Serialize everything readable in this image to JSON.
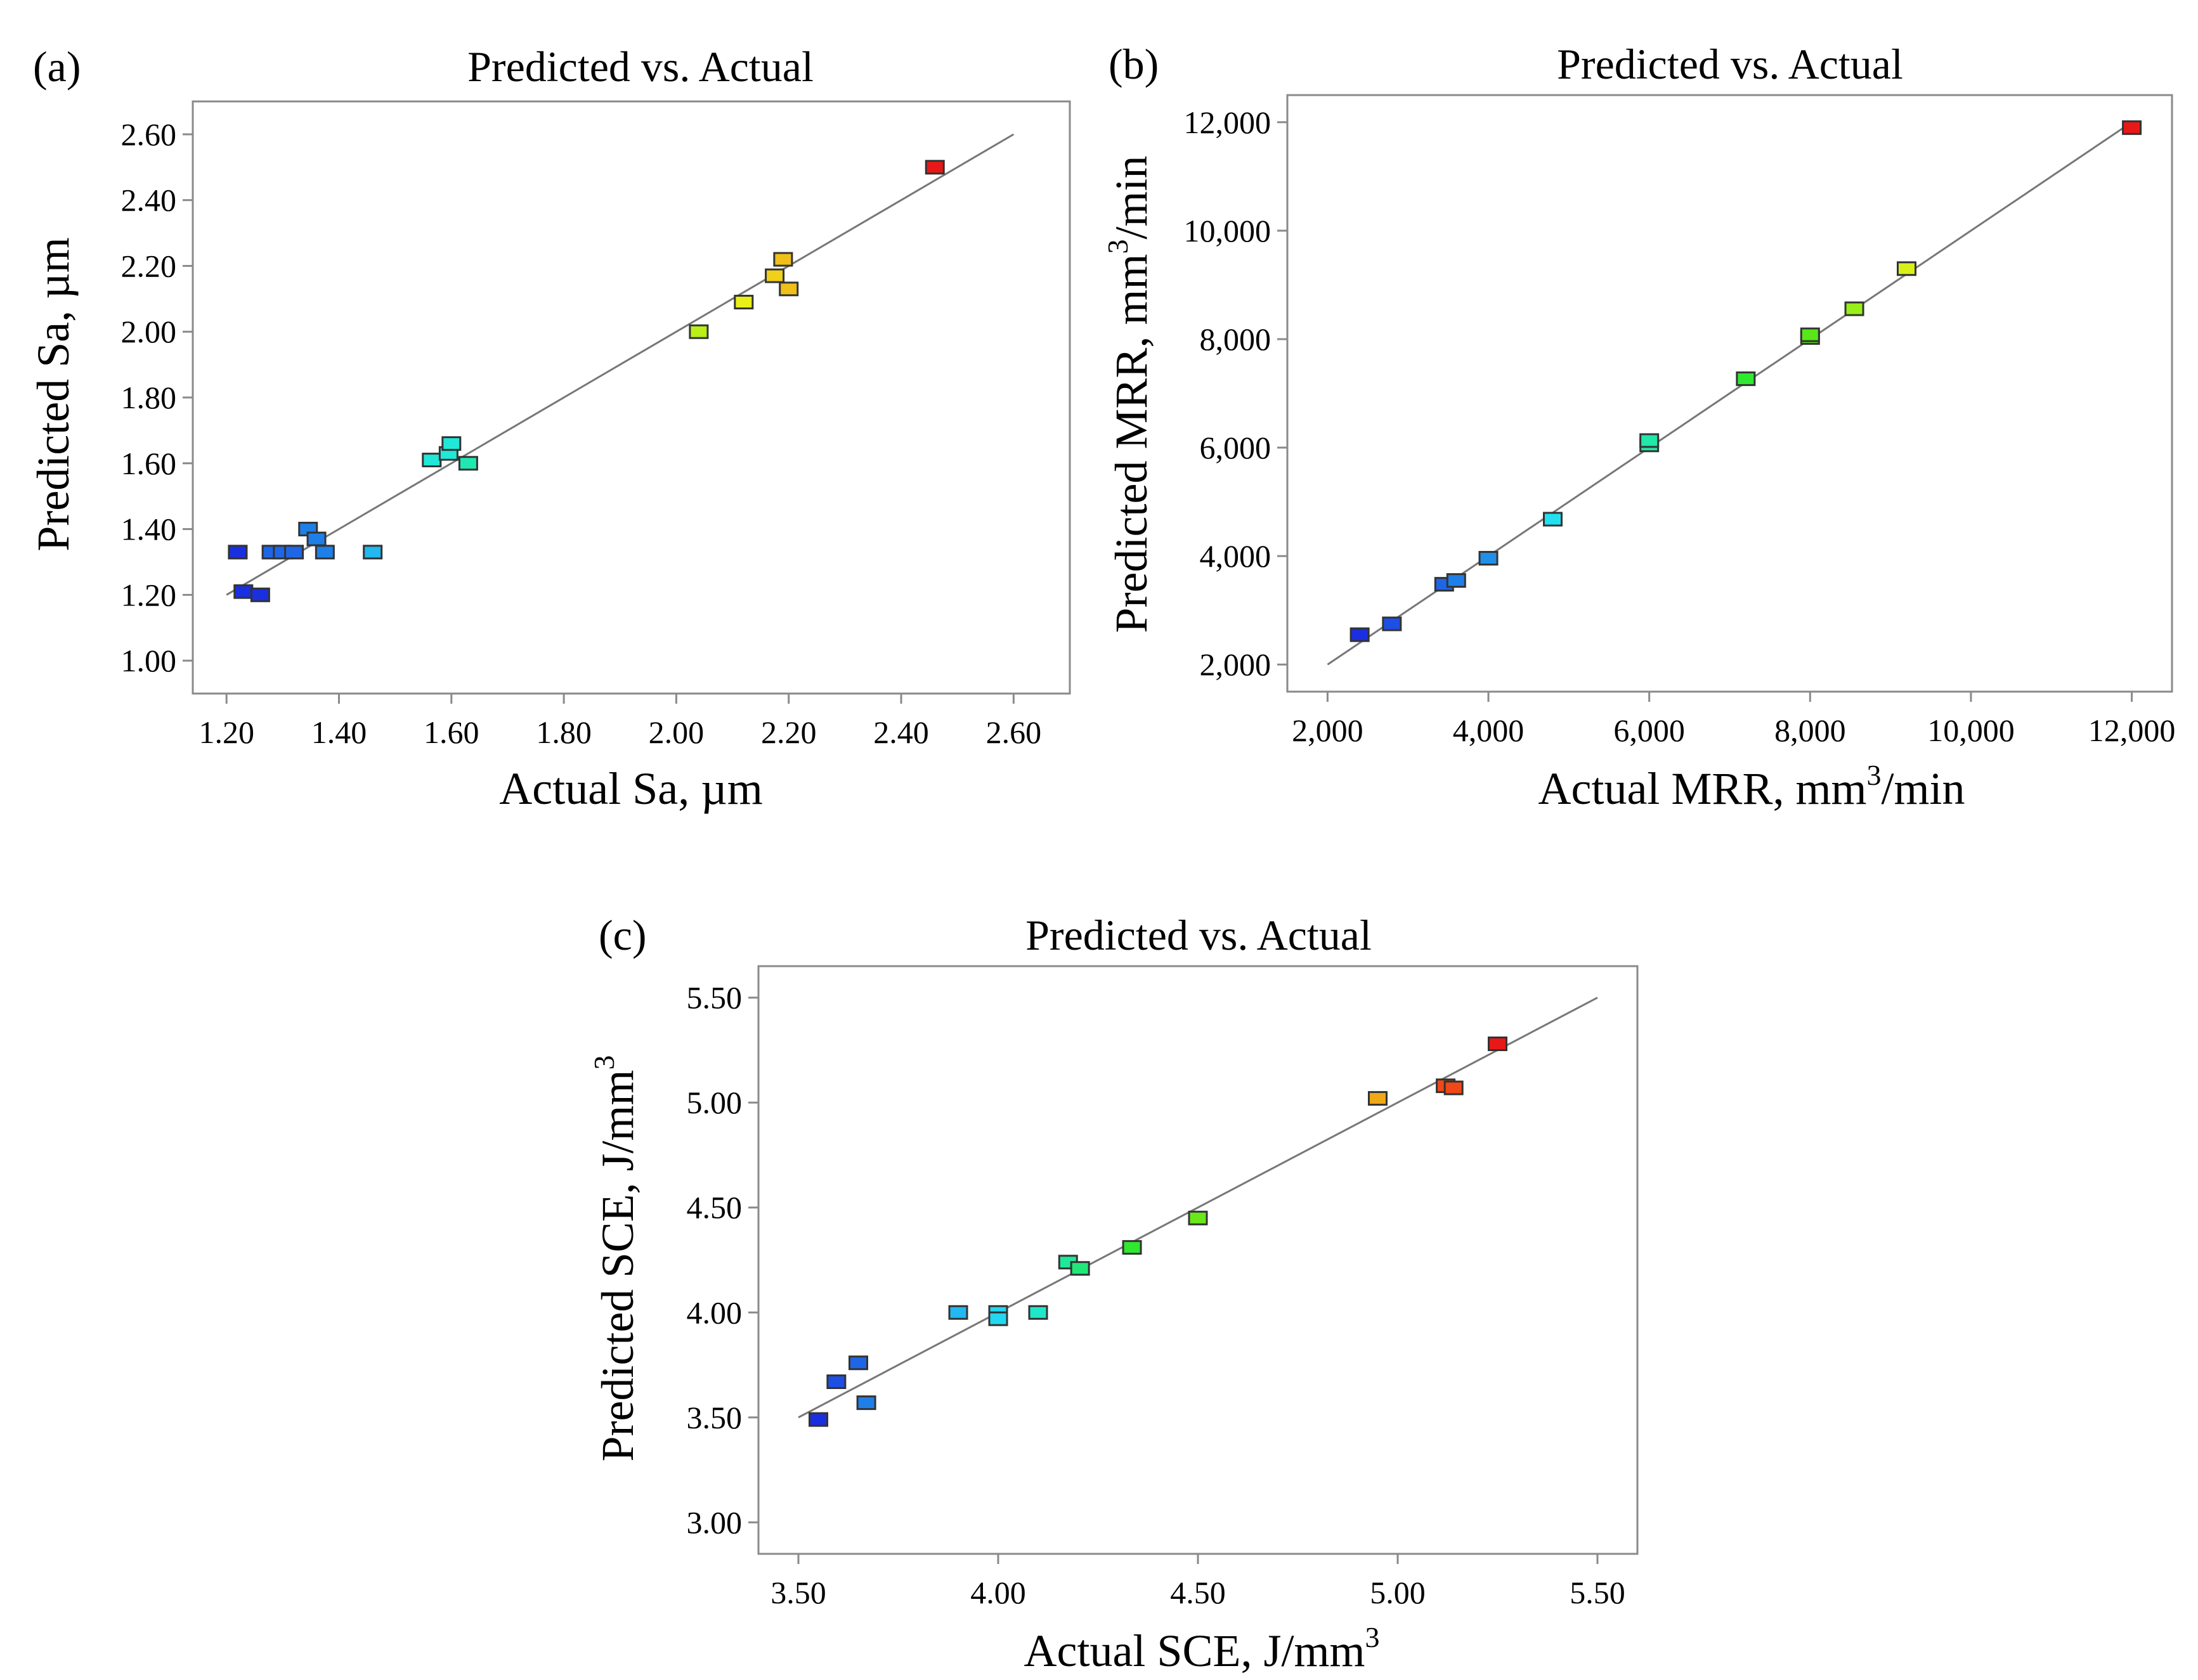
{
  "chart_data": [
    {
      "type": "scatter",
      "panel": "(a)",
      "title": "Predicted vs. Actual",
      "xlabel": "Actual Sa, µm",
      "ylabel": "Predicted Sa, µm",
      "xlim": [
        1.14,
        2.7
      ],
      "ylim": [
        0.9,
        2.7
      ],
      "xticks": [
        1.2,
        1.4,
        1.6,
        1.8,
        2.0,
        2.2,
        2.4,
        2.6
      ],
      "yticks": [
        1.0,
        1.2,
        1.4,
        1.6,
        1.8,
        2.0,
        2.2,
        2.4,
        2.6
      ],
      "tick_format": "fixed2",
      "fit_line": [
        [
          1.2,
          1.2
        ],
        [
          2.6,
          2.6
        ]
      ],
      "points": [
        {
          "x": 1.22,
          "y": 1.33,
          "color": "#1a2fe0"
        },
        {
          "x": 1.23,
          "y": 1.21,
          "color": "#1a2fe0"
        },
        {
          "x": 1.26,
          "y": 1.2,
          "color": "#1a2fe0"
        },
        {
          "x": 1.28,
          "y": 1.33,
          "color": "#1e66e6"
        },
        {
          "x": 1.3,
          "y": 1.33,
          "color": "#1e66e6"
        },
        {
          "x": 1.32,
          "y": 1.33,
          "color": "#1e66e6"
        },
        {
          "x": 1.345,
          "y": 1.4,
          "color": "#1f7fe8"
        },
        {
          "x": 1.36,
          "y": 1.37,
          "color": "#1f7fe8"
        },
        {
          "x": 1.375,
          "y": 1.33,
          "color": "#1f7fe8"
        },
        {
          "x": 1.46,
          "y": 1.33,
          "color": "#22b8f0"
        },
        {
          "x": 1.565,
          "y": 1.61,
          "color": "#1fe8d8"
        },
        {
          "x": 1.595,
          "y": 1.63,
          "color": "#1fe8d8"
        },
        {
          "x": 1.6,
          "y": 1.66,
          "color": "#1fe8d8"
        },
        {
          "x": 1.63,
          "y": 1.6,
          "color": "#1fe8b0"
        },
        {
          "x": 2.04,
          "y": 2.0,
          "color": "#b8f018"
        },
        {
          "x": 2.12,
          "y": 2.09,
          "color": "#e8f018"
        },
        {
          "x": 2.175,
          "y": 2.17,
          "color": "#f0d018"
        },
        {
          "x": 2.19,
          "y": 2.22,
          "color": "#f0c018"
        },
        {
          "x": 2.2,
          "y": 2.13,
          "color": "#f0c018"
        },
        {
          "x": 2.46,
          "y": 2.5,
          "color": "#e81818"
        }
      ]
    },
    {
      "type": "scatter",
      "panel": "(b)",
      "title": "Predicted vs. Actual",
      "xlabel": "Actual MRR, mm³/min",
      "ylabel": "Predicted MRR, mm³/min",
      "xlim": [
        1500,
        12500
      ],
      "ylim": [
        1500,
        12500
      ],
      "xticks": [
        2000,
        4000,
        6000,
        8000,
        10000,
        12000
      ],
      "yticks": [
        2000,
        4000,
        6000,
        8000,
        10000,
        12000
      ],
      "tick_format": "thousands",
      "fit_line": [
        [
          2000,
          2000
        ],
        [
          12000,
          12000
        ]
      ],
      "points": [
        {
          "x": 2400,
          "y": 2550,
          "color": "#1a2fe0"
        },
        {
          "x": 2800,
          "y": 2750,
          "color": "#1e4fe4"
        },
        {
          "x": 3450,
          "y": 3480,
          "color": "#1e66e6"
        },
        {
          "x": 3600,
          "y": 3550,
          "color": "#1f7fe8"
        },
        {
          "x": 4000,
          "y": 3960,
          "color": "#1f8fe8"
        },
        {
          "x": 4800,
          "y": 4680,
          "color": "#22e0f0"
        },
        {
          "x": 6000,
          "y": 6050,
          "color": "#1fe8a8"
        },
        {
          "x": 6000,
          "y": 6130,
          "color": "#1fe8a8"
        },
        {
          "x": 7200,
          "y": 7270,
          "color": "#30e830"
        },
        {
          "x": 8000,
          "y": 8030,
          "color": "#58e818"
        },
        {
          "x": 8000,
          "y": 8080,
          "color": "#58e818"
        },
        {
          "x": 8550,
          "y": 8560,
          "color": "#98f018"
        },
        {
          "x": 9200,
          "y": 9300,
          "color": "#d8f018"
        },
        {
          "x": 12000,
          "y": 11900,
          "color": "#e81818"
        }
      ]
    },
    {
      "type": "scatter",
      "panel": "(c)",
      "title": "Predicted vs. Actual",
      "xlabel": "Actual SCE, J/mm³",
      "ylabel": "Predicted SCE, J/mm³",
      "xlim": [
        3.4,
        5.6
      ],
      "ylim": [
        2.85,
        5.65
      ],
      "xticks": [
        3.5,
        4.0,
        4.5,
        5.0,
        5.5
      ],
      "yticks": [
        3.0,
        3.5,
        4.0,
        4.5,
        5.0,
        5.5
      ],
      "tick_format": "fixed2",
      "fit_line": [
        [
          3.5,
          3.5
        ],
        [
          5.5,
          5.5
        ]
      ],
      "points": [
        {
          "x": 3.55,
          "y": 3.49,
          "color": "#1a2fe0"
        },
        {
          "x": 3.595,
          "y": 3.67,
          "color": "#1e4fe4"
        },
        {
          "x": 3.65,
          "y": 3.76,
          "color": "#1e66e6"
        },
        {
          "x": 3.67,
          "y": 3.57,
          "color": "#1f7fe8"
        },
        {
          "x": 3.9,
          "y": 4.0,
          "color": "#22b8f0"
        },
        {
          "x": 4.0,
          "y": 4.0,
          "color": "#22d8f0"
        },
        {
          "x": 4.0,
          "y": 3.97,
          "color": "#22d8f0"
        },
        {
          "x": 4.1,
          "y": 4.0,
          "color": "#1fe8c8"
        },
        {
          "x": 4.175,
          "y": 4.24,
          "color": "#1fe898"
        },
        {
          "x": 4.205,
          "y": 4.21,
          "color": "#20e878"
        },
        {
          "x": 4.335,
          "y": 4.31,
          "color": "#30e830"
        },
        {
          "x": 4.5,
          "y": 4.45,
          "color": "#68e818"
        },
        {
          "x": 4.95,
          "y": 5.02,
          "color": "#f0a818"
        },
        {
          "x": 5.12,
          "y": 5.08,
          "color": "#f04818"
        },
        {
          "x": 5.14,
          "y": 5.07,
          "color": "#f04818"
        },
        {
          "x": 5.25,
          "y": 5.28,
          "color": "#e81818"
        }
      ]
    }
  ]
}
